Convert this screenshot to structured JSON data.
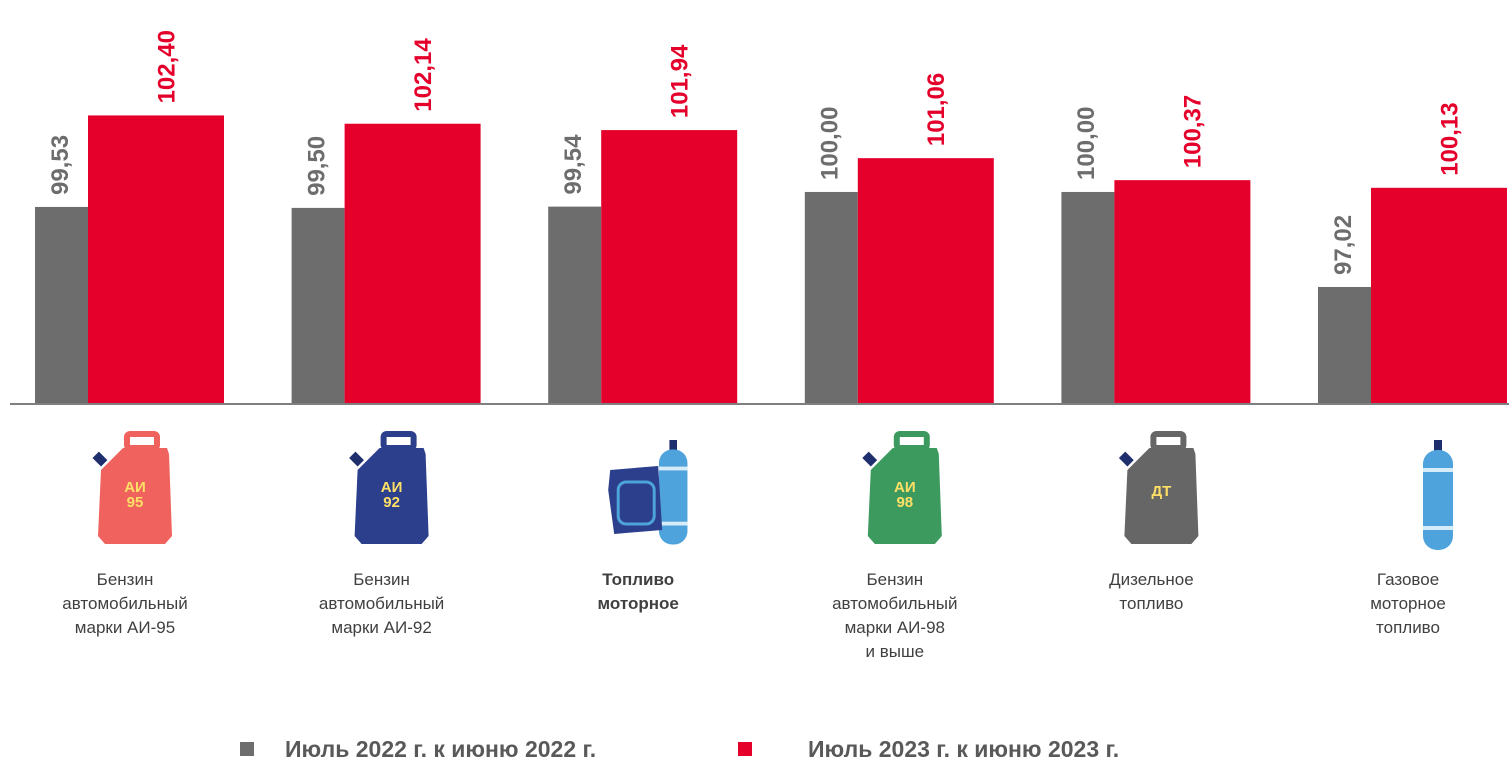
{
  "chart_data": {
    "type": "bar",
    "categories": [
      "Бензин\nавтомобильный\nмарки АИ-95",
      "Бензин\nавтомобильный\nмарки АИ-92",
      "Топливо\nмоторное",
      "Бензин\nавтомобильный\nмарки АИ-98\nи выше",
      "Дизельное\nтопливо",
      "Газовое\nмоторное\nтопливо"
    ],
    "bold_category": 2,
    "series": [
      {
        "name": "Июль 2022 г. к июню 2022 г.",
        "color": "#6d6d6d",
        "values": [
          99.53,
          99.5,
          99.54,
          100.0,
          100.0,
          97.02
        ],
        "value_labels": [
          "99,53",
          "99,50",
          "99,54",
          "100,00",
          "100,00",
          "97,02"
        ]
      },
      {
        "name": "Июль 2023 г. к июню 2023 г.",
        "color": "#e4002b",
        "values": [
          102.4,
          102.14,
          101.94,
          101.06,
          100.37,
          100.13
        ],
        "value_labels": [
          "102,40",
          "102,14",
          "101,94",
          "101,06",
          "100,37",
          "100,13"
        ]
      }
    ],
    "ylim": [
      93.35,
      106.02
    ],
    "icons": [
      {
        "kind": "can",
        "color": "#f0625e",
        "label": "АИ\n95"
      },
      {
        "kind": "can",
        "color": "#2b3f8c",
        "label": "АИ\n92"
      },
      {
        "kind": "combo",
        "color": "#2b3f8c",
        "label": null
      },
      {
        "kind": "can",
        "color": "#3d9a5f",
        "label": "АИ\n98"
      },
      {
        "kind": "can",
        "color": "#666666",
        "label": "ДТ"
      },
      {
        "kind": "cylinder",
        "color": "#4fa3dc",
        "label": null
      }
    ]
  }
}
